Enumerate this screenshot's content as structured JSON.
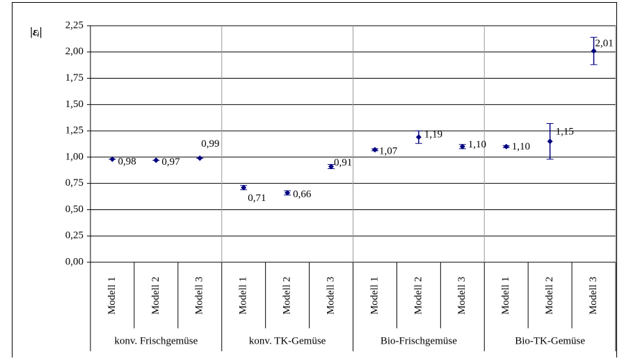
{
  "chart_data": {
    "type": "errorbar",
    "y_label": "|εᵢ|",
    "groups": [
      "konv. Frischgemüse",
      "konv. TK-Gemüse",
      "Bio-Frischgemüse",
      "Bio-TK-Gemüse"
    ],
    "categories": [
      "Modell 1",
      "Modell 2",
      "Modell 3",
      "Modell 1",
      "Modell 2",
      "Modell 3",
      "Modell 1",
      "Modell 2",
      "Modell 3",
      "Modell 1",
      "Modell 2",
      "Modell 3"
    ],
    "series": [
      {
        "color": "#000080",
        "values": [
          0.98,
          0.97,
          0.99,
          0.71,
          0.66,
          0.91,
          1.07,
          1.19,
          1.1,
          1.1,
          1.15,
          2.01
        ],
        "value_labels": [
          "0,98",
          "0,97",
          "0,99",
          "0,71",
          "0,66",
          "0,91",
          "1,07",
          "1,19",
          "1,10",
          "1,10",
          "1,15",
          "2,01"
        ],
        "errors": [
          0,
          0,
          0,
          0.02,
          0.02,
          0.02,
          0.01,
          0.06,
          0.02,
          0.01,
          0.17,
          0.13
        ]
      }
    ],
    "ylim": [
      0,
      2.25
    ],
    "yticks": [
      {
        "value": 0,
        "label": "0,00"
      },
      {
        "value": 0.25,
        "label": "0,25"
      },
      {
        "value": 0.5,
        "label": "0,50"
      },
      {
        "value": 0.75,
        "label": "0,75"
      },
      {
        "value": 1,
        "label": "1,00"
      },
      {
        "value": 1.25,
        "label": "1,25"
      },
      {
        "value": 1.5,
        "label": "1,50"
      },
      {
        "value": 1.75,
        "label": "1,75"
      },
      {
        "value": 2,
        "label": "2,00"
      },
      {
        "value": 2.25,
        "label": "2,25"
      }
    ],
    "grid": true
  }
}
